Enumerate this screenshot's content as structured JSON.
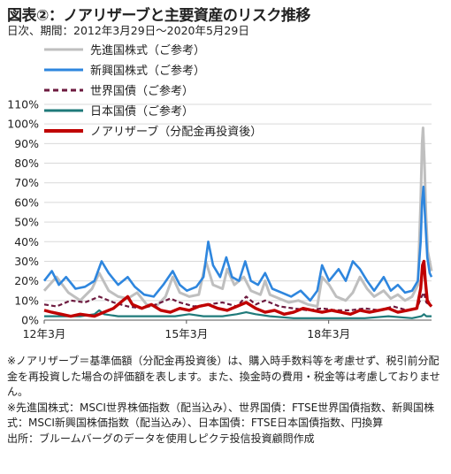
{
  "title": "図表②：ノアリザーブと主要資産のリスク推移",
  "subtitle": "日次、期間：2012年3月29日～2020年5月29日",
  "notes": [
    "※ノアリザーブ＝基準価額（分配金再投資後）は、購入時手数料等を考慮せず、税引前分配金を再投資した場合の評価額を表します。また、換金時の費用・税金等は考慮しておりません。",
    "※先進国株式：MSCI世界株価指数（配当込み）、世界国債：FTSE世界国債指数、新興国株式：MSCI新興国株価指数（配当込み）、日本国債：FTSE日本国債指数、円換算",
    "出所：ブルームバーグのデータを使用しピクテ投信投資顧問作成"
  ],
  "chart_data": {
    "type": "line",
    "xlabel": "",
    "ylabel": "",
    "ylim": [
      0,
      110
    ],
    "yticks": [
      "0%",
      "10%",
      "20%",
      "30%",
      "40%",
      "50%",
      "60%",
      "70%",
      "80%",
      "90%",
      "100%",
      "110%"
    ],
    "xticks": [
      {
        "label": "12年3月",
        "t": 2012.24
      },
      {
        "label": "15年3月",
        "t": 2015.24
      },
      {
        "label": "18年3月",
        "t": 2018.24
      }
    ],
    "xrange": [
      2012.24,
      2020.41
    ],
    "grid": true,
    "legend_position": "top-left",
    "series": [
      {
        "name": "先進国株式（ご参考）",
        "color": "#bfbfbf",
        "style": "solid",
        "values": [
          [
            2012.24,
            15
          ],
          [
            2012.5,
            22
          ],
          [
            2012.75,
            14
          ],
          [
            2013.0,
            10
          ],
          [
            2013.25,
            16
          ],
          [
            2013.4,
            24
          ],
          [
            2013.6,
            15
          ],
          [
            2013.8,
            12
          ],
          [
            2014.0,
            11
          ],
          [
            2014.2,
            14
          ],
          [
            2014.4,
            8
          ],
          [
            2014.6,
            7
          ],
          [
            2014.8,
            12
          ],
          [
            2014.95,
            22
          ],
          [
            2015.1,
            14
          ],
          [
            2015.3,
            12
          ],
          [
            2015.5,
            13
          ],
          [
            2015.65,
            30
          ],
          [
            2015.8,
            18
          ],
          [
            2016.0,
            16
          ],
          [
            2016.1,
            26
          ],
          [
            2016.25,
            18
          ],
          [
            2016.45,
            22
          ],
          [
            2016.6,
            15
          ],
          [
            2016.8,
            13
          ],
          [
            2016.9,
            20
          ],
          [
            2017.0,
            13
          ],
          [
            2017.2,
            11
          ],
          [
            2017.4,
            9
          ],
          [
            2017.6,
            10
          ],
          [
            2017.8,
            8
          ],
          [
            2018.0,
            7
          ],
          [
            2018.1,
            22
          ],
          [
            2018.25,
            18
          ],
          [
            2018.4,
            12
          ],
          [
            2018.6,
            10
          ],
          [
            2018.75,
            14
          ],
          [
            2018.9,
            22
          ],
          [
            2019.05,
            16
          ],
          [
            2019.2,
            12
          ],
          [
            2019.4,
            15
          ],
          [
            2019.55,
            11
          ],
          [
            2019.7,
            13
          ],
          [
            2019.85,
            10
          ],
          [
            2020.0,
            12
          ],
          [
            2020.12,
            18
          ],
          [
            2020.18,
            60
          ],
          [
            2020.21,
            90
          ],
          [
            2020.23,
            98
          ],
          [
            2020.26,
            80
          ],
          [
            2020.29,
            55
          ],
          [
            2020.33,
            35
          ],
          [
            2020.37,
            30
          ],
          [
            2020.41,
            25
          ]
        ]
      },
      {
        "name": "新興国株式（ご参考）",
        "color": "#2e86de",
        "style": "solid",
        "values": [
          [
            2012.24,
            20
          ],
          [
            2012.4,
            25
          ],
          [
            2012.55,
            18
          ],
          [
            2012.7,
            22
          ],
          [
            2012.9,
            16
          ],
          [
            2013.1,
            17
          ],
          [
            2013.3,
            20
          ],
          [
            2013.45,
            30
          ],
          [
            2013.6,
            24
          ],
          [
            2013.8,
            18
          ],
          [
            2014.0,
            22
          ],
          [
            2014.15,
            17
          ],
          [
            2014.35,
            13
          ],
          [
            2014.55,
            12
          ],
          [
            2014.75,
            18
          ],
          [
            2014.95,
            25
          ],
          [
            2015.1,
            18
          ],
          [
            2015.25,
            15
          ],
          [
            2015.45,
            17
          ],
          [
            2015.6,
            22
          ],
          [
            2015.7,
            40
          ],
          [
            2015.8,
            28
          ],
          [
            2015.95,
            22
          ],
          [
            2016.08,
            32
          ],
          [
            2016.2,
            22
          ],
          [
            2016.35,
            20
          ],
          [
            2016.48,
            30
          ],
          [
            2016.6,
            20
          ],
          [
            2016.75,
            18
          ],
          [
            2016.9,
            24
          ],
          [
            2017.05,
            16
          ],
          [
            2017.25,
            14
          ],
          [
            2017.45,
            12
          ],
          [
            2017.65,
            15
          ],
          [
            2017.85,
            10
          ],
          [
            2018.0,
            15
          ],
          [
            2018.1,
            28
          ],
          [
            2018.25,
            20
          ],
          [
            2018.45,
            26
          ],
          [
            2018.6,
            20
          ],
          [
            2018.75,
            30
          ],
          [
            2018.9,
            26
          ],
          [
            2019.05,
            20
          ],
          [
            2019.2,
            15
          ],
          [
            2019.4,
            22
          ],
          [
            2019.55,
            15
          ],
          [
            2019.7,
            18
          ],
          [
            2019.85,
            14
          ],
          [
            2020.0,
            15
          ],
          [
            2020.12,
            20
          ],
          [
            2020.18,
            40
          ],
          [
            2020.21,
            60
          ],
          [
            2020.24,
            68
          ],
          [
            2020.28,
            50
          ],
          [
            2020.32,
            32
          ],
          [
            2020.37,
            24
          ],
          [
            2020.41,
            22
          ]
        ]
      },
      {
        "name": "世界国債（ご参考）",
        "color": "#6d1a3f",
        "style": "dashed",
        "values": [
          [
            2012.24,
            8
          ],
          [
            2012.5,
            7
          ],
          [
            2012.8,
            10
          ],
          [
            2013.1,
            9
          ],
          [
            2013.4,
            12
          ],
          [
            2013.7,
            9
          ],
          [
            2014.0,
            7
          ],
          [
            2014.3,
            6
          ],
          [
            2014.6,
            8
          ],
          [
            2014.9,
            11
          ],
          [
            2015.1,
            9
          ],
          [
            2015.4,
            7
          ],
          [
            2015.7,
            8
          ],
          [
            2016.0,
            9
          ],
          [
            2016.3,
            7
          ],
          [
            2016.5,
            12
          ],
          [
            2016.7,
            8
          ],
          [
            2016.9,
            10
          ],
          [
            2017.2,
            7
          ],
          [
            2017.5,
            6
          ],
          [
            2017.8,
            5
          ],
          [
            2018.1,
            6
          ],
          [
            2018.4,
            5
          ],
          [
            2018.7,
            5
          ],
          [
            2019.0,
            6
          ],
          [
            2019.3,
            5
          ],
          [
            2019.6,
            7
          ],
          [
            2019.9,
            5
          ],
          [
            2020.1,
            6
          ],
          [
            2020.2,
            12
          ],
          [
            2020.25,
            14
          ],
          [
            2020.3,
            9
          ],
          [
            2020.41,
            7
          ]
        ]
      },
      {
        "name": "日本国債（ご参考）",
        "color": "#1f7a7a",
        "style": "solid",
        "values": [
          [
            2012.24,
            2
          ],
          [
            2012.6,
            2
          ],
          [
            2013.0,
            2
          ],
          [
            2013.3,
            3
          ],
          [
            2013.4,
            5
          ],
          [
            2013.5,
            3
          ],
          [
            2013.8,
            2
          ],
          [
            2014.5,
            2
          ],
          [
            2015.0,
            2
          ],
          [
            2015.3,
            3
          ],
          [
            2015.6,
            2
          ],
          [
            2016.0,
            2
          ],
          [
            2016.3,
            3
          ],
          [
            2016.5,
            4
          ],
          [
            2016.7,
            3
          ],
          [
            2017.0,
            2
          ],
          [
            2017.5,
            1
          ],
          [
            2018.0,
            1
          ],
          [
            2018.5,
            1
          ],
          [
            2019.0,
            1
          ],
          [
            2019.5,
            2
          ],
          [
            2020.0,
            1
          ],
          [
            2020.2,
            2
          ],
          [
            2020.25,
            3
          ],
          [
            2020.3,
            2
          ],
          [
            2020.41,
            2
          ]
        ]
      },
      {
        "name": "ノアリザーブ（分配金再投資後）",
        "color": "#c00000",
        "style": "solid",
        "values": [
          [
            2012.24,
            5
          ],
          [
            2012.4,
            4
          ],
          [
            2012.6,
            3
          ],
          [
            2012.8,
            2
          ],
          [
            2013.0,
            3
          ],
          [
            2013.3,
            2
          ],
          [
            2013.5,
            4
          ],
          [
            2013.7,
            6
          ],
          [
            2013.9,
            10
          ],
          [
            2014.0,
            12
          ],
          [
            2014.1,
            8
          ],
          [
            2014.3,
            6
          ],
          [
            2014.5,
            8
          ],
          [
            2014.7,
            5
          ],
          [
            2014.9,
            4
          ],
          [
            2015.1,
            6
          ],
          [
            2015.3,
            5
          ],
          [
            2015.5,
            7
          ],
          [
            2015.7,
            8
          ],
          [
            2015.9,
            6
          ],
          [
            2016.1,
            5
          ],
          [
            2016.3,
            7
          ],
          [
            2016.5,
            9
          ],
          [
            2016.7,
            6
          ],
          [
            2016.9,
            4
          ],
          [
            2017.1,
            5
          ],
          [
            2017.3,
            3
          ],
          [
            2017.5,
            4
          ],
          [
            2017.7,
            6
          ],
          [
            2017.9,
            5
          ],
          [
            2018.1,
            4
          ],
          [
            2018.3,
            5
          ],
          [
            2018.5,
            4
          ],
          [
            2018.7,
            3
          ],
          [
            2018.9,
            5
          ],
          [
            2019.1,
            4
          ],
          [
            2019.3,
            5
          ],
          [
            2019.5,
            6
          ],
          [
            2019.7,
            4
          ],
          [
            2019.9,
            5
          ],
          [
            2020.1,
            6
          ],
          [
            2020.18,
            16
          ],
          [
            2020.22,
            28
          ],
          [
            2020.25,
            30
          ],
          [
            2020.28,
            20
          ],
          [
            2020.32,
            10
          ],
          [
            2020.37,
            8
          ],
          [
            2020.41,
            7
          ]
        ]
      }
    ]
  }
}
